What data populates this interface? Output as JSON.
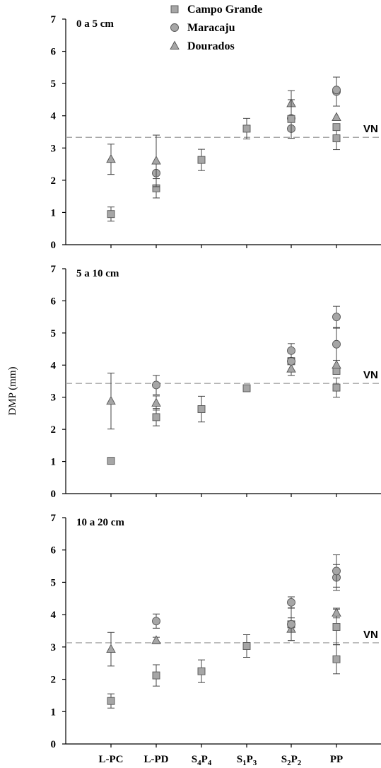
{
  "ylabel": "DMP (mm)",
  "legend": [
    {
      "name": "Campo Grande",
      "marker": "square"
    },
    {
      "name": "Maracaju",
      "marker": "circle"
    },
    {
      "name": "Dourados",
      "marker": "triangle"
    }
  ],
  "marker_fill": "#a6a6a6",
  "reference_color": "#a6a6a6",
  "categories": [
    {
      "main": "L-PC",
      "s1": "",
      "m2": "",
      "s2": ""
    },
    {
      "main": "L-PD",
      "s1": "",
      "m2": "",
      "s2": ""
    },
    {
      "main": "S",
      "s1": "4",
      "m2": "P",
      "s2": "4"
    },
    {
      "main": "S",
      "s1": "1",
      "m2": "P",
      "s2": "3"
    },
    {
      "main": "S",
      "s1": "2",
      "m2": "P",
      "s2": "2"
    },
    {
      "main": "PP",
      "s1": "",
      "m2": "",
      "s2": ""
    }
  ],
  "chart_data": [
    {
      "type": "scatter",
      "title": "0 a 5 cm",
      "ylim": [
        0,
        7
      ],
      "yticks": [
        0,
        1,
        2,
        3,
        4,
        5,
        6,
        7
      ],
      "reference": {
        "label": "VN",
        "value": 3.33
      },
      "points": [
        {
          "series": "Campo Grande",
          "x": "L-PC",
          "y": 0.95,
          "err": 0.22
        },
        {
          "series": "Dourados",
          "x": "L-PC",
          "y": 2.65,
          "err": 0.47
        },
        {
          "series": "Campo Grande",
          "x": "L-PD",
          "y": 1.75,
          "err": 0.3
        },
        {
          "series": "Maracaju",
          "x": "L-PD",
          "y": 2.22,
          "err": 0.0
        },
        {
          "series": "Dourados",
          "x": "L-PD",
          "y": 2.6,
          "err": 0.8
        },
        {
          "series": "Campo Grande",
          "x": "S4P4",
          "y": 2.63,
          "err": 0.33
        },
        {
          "series": "Campo Grande",
          "x": "S1P3",
          "y": 3.6,
          "err": 0.32
        },
        {
          "series": "Maracaju",
          "x": "S2P2",
          "y": 3.6,
          "err": 0.0
        },
        {
          "series": "Maracaju",
          "x": "S2P2",
          "y": 3.92,
          "err": 0.0
        },
        {
          "series": "Dourados",
          "x": "S2P2",
          "y": 4.38,
          "err": 0.4
        },
        {
          "series": "Campo Grande",
          "x": "S2P2",
          "y": 3.9,
          "err": 0.6
        },
        {
          "series": "Campo Grande",
          "x": "PP",
          "y": 3.3,
          "err": 0.35
        },
        {
          "series": "Campo Grande",
          "x": "PP",
          "y": 3.65,
          "err": 0.0
        },
        {
          "series": "Dourados",
          "x": "PP",
          "y": 3.95,
          "err": 0.0
        },
        {
          "series": "Maracaju",
          "x": "PP",
          "y": 4.75,
          "err": 0.45
        },
        {
          "series": "Maracaju",
          "x": "PP",
          "y": 4.8,
          "err": 0.0
        }
      ]
    },
    {
      "type": "scatter",
      "title": "5 a 10 cm",
      "ylim": [
        0,
        7
      ],
      "yticks": [
        0,
        1,
        2,
        3,
        4,
        5,
        6,
        7
      ],
      "reference": {
        "label": "VN",
        "value": 3.43
      },
      "points": [
        {
          "series": "Campo Grande",
          "x": "L-PC",
          "y": 1.02,
          "err": 0.0
        },
        {
          "series": "Dourados",
          "x": "L-PC",
          "y": 2.88,
          "err": 0.87
        },
        {
          "series": "Campo Grande",
          "x": "L-PD",
          "y": 2.38,
          "err": 0.27
        },
        {
          "series": "Dourados",
          "x": "L-PD",
          "y": 2.82,
          "err": 0.22
        },
        {
          "series": "Maracaju",
          "x": "L-PD",
          "y": 3.38,
          "err": 0.3
        },
        {
          "series": "Campo Grande",
          "x": "S4P4",
          "y": 2.63,
          "err": 0.4
        },
        {
          "series": "Campo Grande",
          "x": "S1P3",
          "y": 3.28,
          "err": 0.07
        },
        {
          "series": "Dourados",
          "x": "S2P2",
          "y": 3.88,
          "err": 0.2
        },
        {
          "series": "Campo Grande",
          "x": "S2P2",
          "y": 4.12,
          "err": 0.0
        },
        {
          "series": "Maracaju",
          "x": "S2P2",
          "y": 4.12,
          "err": 0.0
        },
        {
          "series": "Maracaju",
          "x": "S2P2",
          "y": 4.45,
          "err": 0.22
        },
        {
          "series": "Campo Grande",
          "x": "PP",
          "y": 3.3,
          "err": 0.3
        },
        {
          "series": "Campo Grande",
          "x": "PP",
          "y": 3.82,
          "err": 0.0
        },
        {
          "series": "Dourados",
          "x": "PP",
          "y": 4.0,
          "err": 0.0
        },
        {
          "series": "Maracaju",
          "x": "PP",
          "y": 4.65,
          "err": 0.5
        },
        {
          "series": "Maracaju",
          "x": "PP",
          "y": 5.5,
          "err": 0.33
        }
      ]
    },
    {
      "type": "scatter",
      "title": "10 a 20 cm",
      "ylim": [
        0,
        7
      ],
      "yticks": [
        0,
        1,
        2,
        3,
        4,
        5,
        6,
        7
      ],
      "reference": {
        "label": "VN",
        "value": 3.13
      },
      "points": [
        {
          "series": "Campo Grande",
          "x": "L-PC",
          "y": 1.33,
          "err": 0.22
        },
        {
          "series": "Dourados",
          "x": "L-PC",
          "y": 2.93,
          "err": 0.52
        },
        {
          "series": "Campo Grande",
          "x": "L-PD",
          "y": 2.12,
          "err": 0.33
        },
        {
          "series": "Dourados",
          "x": "L-PD",
          "y": 3.2,
          "err": 0.1
        },
        {
          "series": "Maracaju",
          "x": "L-PD",
          "y": 3.8,
          "err": 0.22
        },
        {
          "series": "Campo Grande",
          "x": "S4P4",
          "y": 2.25,
          "err": 0.35
        },
        {
          "series": "Campo Grande",
          "x": "S1P3",
          "y": 3.03,
          "err": 0.35
        },
        {
          "series": "Dourados",
          "x": "S2P2",
          "y": 3.55,
          "err": 0.35
        },
        {
          "series": "Campo Grande",
          "x": "S2P2",
          "y": 3.7,
          "err": 0.0
        },
        {
          "series": "Maracaju",
          "x": "S2P2",
          "y": 3.7,
          "err": 0.5
        },
        {
          "series": "Maracaju",
          "x": "S2P2",
          "y": 4.38,
          "err": 0.17
        },
        {
          "series": "Campo Grande",
          "x": "PP",
          "y": 2.62,
          "err": 0.45
        },
        {
          "series": "Campo Grande",
          "x": "PP",
          "y": 3.62,
          "err": 0.55
        },
        {
          "series": "Dourados",
          "x": "PP",
          "y": 4.05,
          "err": 0.15
        },
        {
          "series": "Maracaju",
          "x": "PP",
          "y": 5.15,
          "err": 0.4
        },
        {
          "series": "Maracaju",
          "x": "PP",
          "y": 5.35,
          "err": 0.5
        }
      ]
    }
  ]
}
